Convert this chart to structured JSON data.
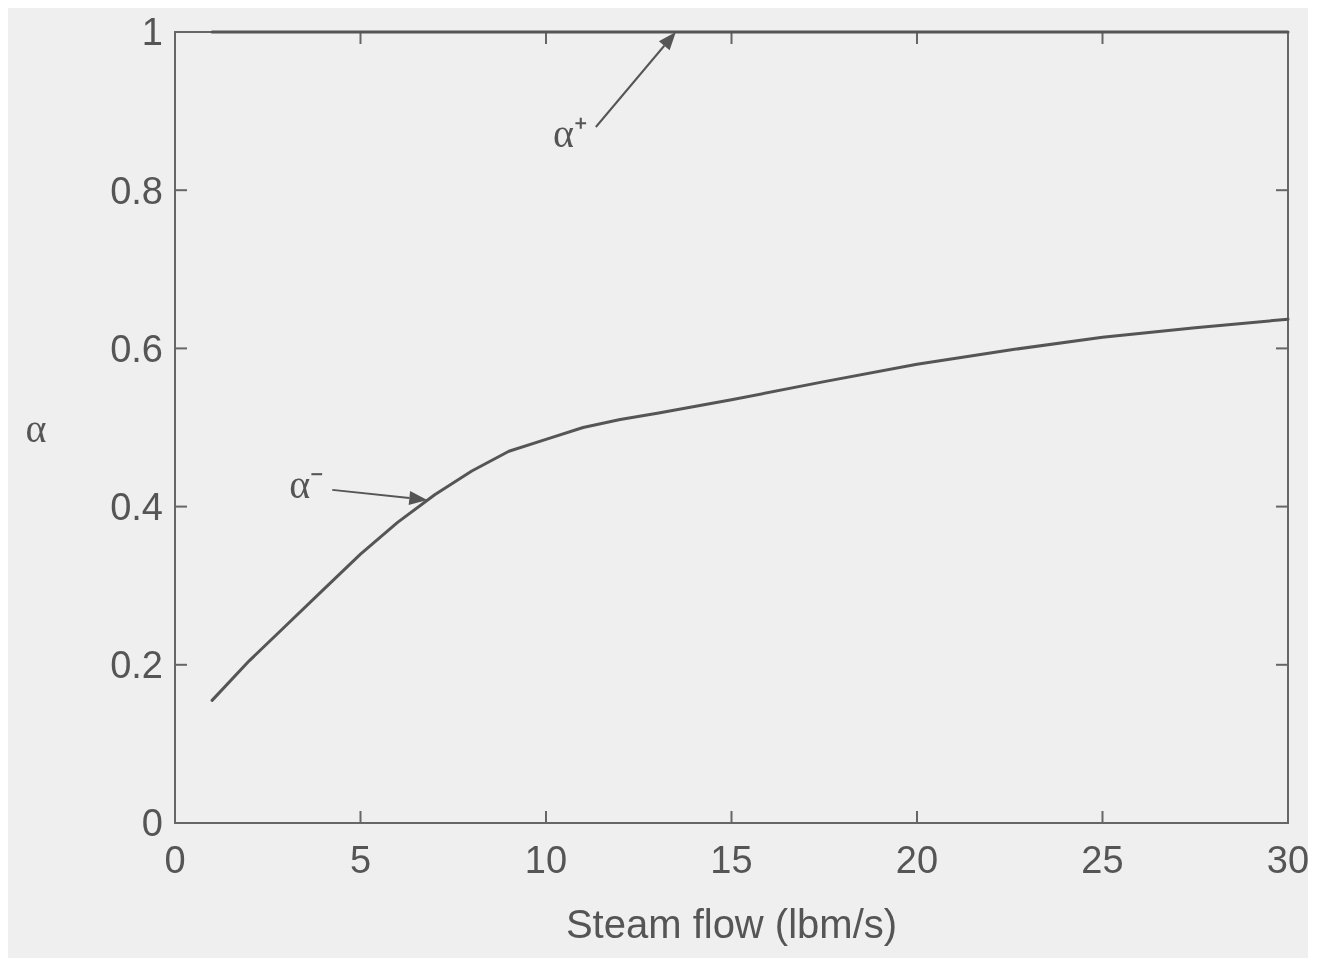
{
  "chart_data": {
    "type": "line",
    "xlabel": "Steam flow (lbm/s)",
    "ylabel": "α",
    "x": [
      1,
      2,
      3,
      4,
      5,
      6,
      7,
      8,
      9,
      10,
      11,
      12,
      13,
      15,
      17.5,
      20,
      22.5,
      25,
      27.5,
      30
    ],
    "series": [
      {
        "color": "#555555",
        "x": [
          1,
          30
        ],
        "values": [
          1,
          1
        ]
      },
      {
        "color": "#555555",
        "values": [
          0.155,
          0.205,
          0.25,
          0.295,
          0.34,
          0.38,
          0.415,
          0.445,
          0.47,
          0.485,
          0.5,
          0.51,
          0.518,
          0.535,
          0.558,
          0.58,
          0.598,
          0.614,
          0.626,
          0.637
        ]
      }
    ],
    "xlim": [
      0,
      30
    ],
    "ylim": [
      0,
      1
    ],
    "xticks": [
      0,
      5,
      10,
      15,
      20,
      25,
      30
    ],
    "yticks": [
      0,
      0.2,
      0.4,
      0.6,
      0.8,
      1
    ],
    "annotations": [
      {
        "text": "α⁺",
        "x": 13.5,
        "y": 1
      },
      {
        "text": "α⁻",
        "x": 6.8,
        "y": 0.4085
      }
    ],
    "grid": false,
    "marker": "none",
    "line_style": "solid"
  }
}
